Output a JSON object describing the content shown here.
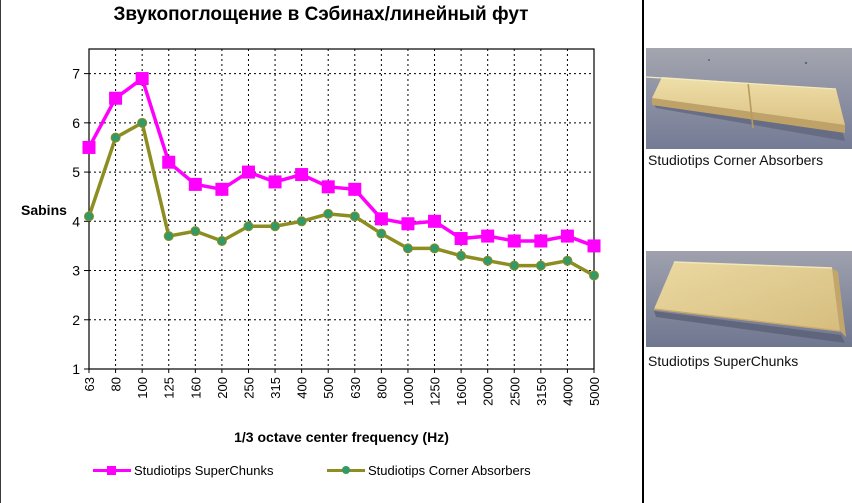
{
  "chart_data": {
    "type": "line",
    "title": "Звукопоглощение в Сэбинах/линейный фут",
    "xlabel": "1/3 octave center frequency (Hz)",
    "ylabel": "Sabins",
    "categories": [
      "63",
      "80",
      "100",
      "125",
      "160",
      "200",
      "250",
      "315",
      "400",
      "500",
      "630",
      "800",
      "1000",
      "1250",
      "1600",
      "2000",
      "2500",
      "3150",
      "4000",
      "5000"
    ],
    "series": [
      {
        "name": "Studiotips SuperChunks",
        "marker": "square",
        "color": "#ff00ff",
        "marker_color": "#ff00ff",
        "values": [
          5.5,
          6.5,
          6.9,
          5.2,
          4.75,
          4.65,
          5.0,
          4.8,
          4.95,
          4.7,
          4.65,
          4.05,
          3.95,
          4.0,
          3.65,
          3.7,
          3.6,
          3.6,
          3.7,
          3.5
        ]
      },
      {
        "name": "Studiotips Corner Absorbers",
        "marker": "circle",
        "color": "#8d8d21",
        "marker_color": "#339966",
        "values": [
          4.1,
          5.7,
          6.0,
          3.7,
          3.8,
          3.6,
          3.9,
          3.9,
          4.0,
          4.15,
          4.1,
          3.75,
          3.45,
          3.45,
          3.3,
          3.2,
          3.1,
          3.1,
          3.2,
          2.9
        ]
      }
    ],
    "ylim": [
      1,
      7.5
    ],
    "yticks": [
      1,
      2,
      3,
      4,
      5,
      6,
      7
    ],
    "grid": "horizontal and vertical, black dashed",
    "legend_position": "bottom"
  },
  "photos": {
    "items": [
      {
        "caption": "Studiotips Corner Absorbers"
      },
      {
        "caption": "Studiotips SuperChunks"
      }
    ]
  }
}
